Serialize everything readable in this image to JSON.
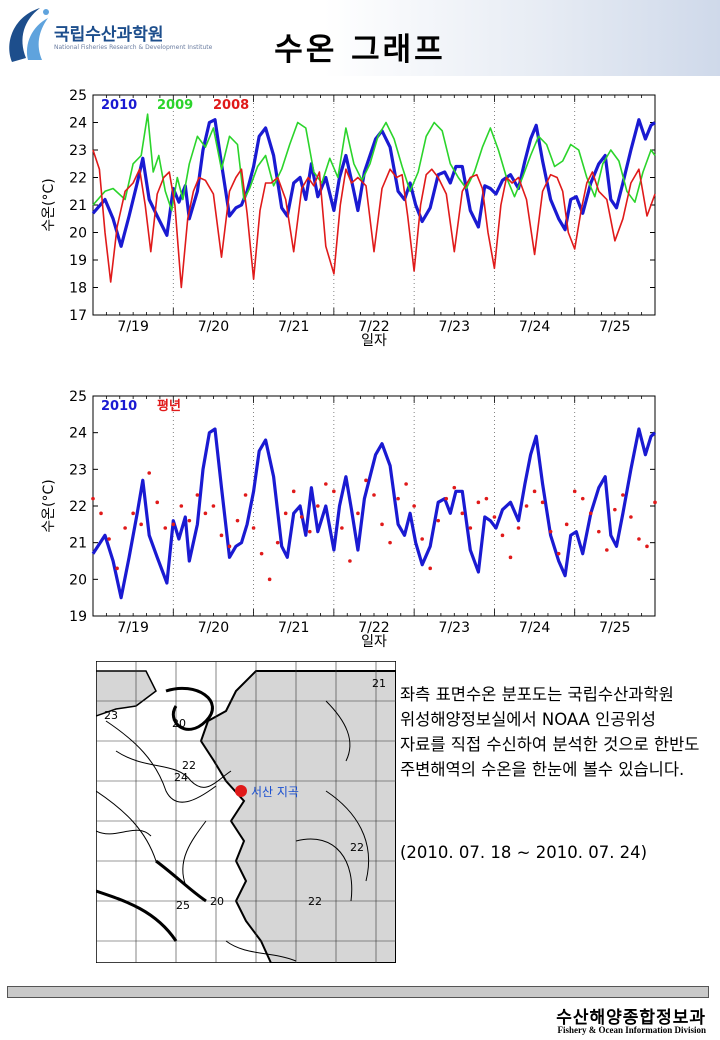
{
  "header": {
    "logo_text": "국립수산과학원",
    "logo_subtitle": "National Fisheries Research & Development Institute",
    "title": "수온 그래프"
  },
  "colors": {
    "blue": "#1a1ad2",
    "green": "#2bd42b",
    "red": "#e01a1a"
  },
  "chart_data": [
    {
      "type": "line",
      "xlabel": "일자",
      "ylabel": "수온(°C)",
      "ylim": [
        17,
        25
      ],
      "yticks": [
        17,
        18,
        19,
        20,
        21,
        22,
        23,
        24,
        25
      ],
      "categories": [
        "7/19",
        "7/20",
        "7/21",
        "7/22",
        "7/23",
        "7/24",
        "7/25"
      ],
      "xlim": [
        0,
        7
      ],
      "grid": "vertical dotted day separators",
      "legend": "top-left",
      "series": [
        {
          "name": "2010",
          "color": "#1a1ad2",
          "x": [
            0,
            0.15,
            0.25,
            0.35,
            0.45,
            0.55,
            0.62,
            0.7,
            0.8,
            0.92,
            1.0,
            1.07,
            1.15,
            1.2,
            1.3,
            1.37,
            1.45,
            1.52,
            1.6,
            1.7,
            1.78,
            1.85,
            1.92,
            2.0,
            2.07,
            2.15,
            2.25,
            2.35,
            2.42,
            2.5,
            2.58,
            2.65,
            2.72,
            2.8,
            2.9,
            3.0,
            3.07,
            3.15,
            3.22,
            3.3,
            3.38,
            3.45,
            3.52,
            3.6,
            3.7,
            3.8,
            3.88,
            3.95,
            4.02,
            4.1,
            4.2,
            4.3,
            4.38,
            4.45,
            4.52,
            4.6,
            4.7,
            4.8,
            4.88,
            4.95,
            5.02,
            5.1,
            5.2,
            5.3,
            5.38,
            5.45,
            5.52,
            5.6,
            5.7,
            5.8,
            5.88,
            5.95,
            6.02,
            6.1,
            6.2,
            6.3,
            6.38,
            6.45,
            6.52,
            6.6,
            6.7,
            6.8,
            6.88,
            6.95,
            7.0
          ],
          "values": [
            20.7,
            21.2,
            20.5,
            19.5,
            20.6,
            21.8,
            22.7,
            21.2,
            20.6,
            19.9,
            21.6,
            21.1,
            21.7,
            20.5,
            21.5,
            23.0,
            24.0,
            24.1,
            22.5,
            20.6,
            20.9,
            21.0,
            21.5,
            22.4,
            23.5,
            23.8,
            22.8,
            20.9,
            20.6,
            21.8,
            22.0,
            21.2,
            22.5,
            21.3,
            22.0,
            20.8,
            22.0,
            22.8,
            21.9,
            20.8,
            22.2,
            22.8,
            23.4,
            23.7,
            23.1,
            21.5,
            21.2,
            21.8,
            21.0,
            20.4,
            20.9,
            22.1,
            22.2,
            21.8,
            22.4,
            22.4,
            20.8,
            20.2,
            21.7,
            21.6,
            21.4,
            21.9,
            22.1,
            21.6,
            22.6,
            23.4,
            23.9,
            22.6,
            21.2,
            20.5,
            20.1,
            21.2,
            21.3,
            20.7,
            21.8,
            22.5,
            22.8,
            21.2,
            20.9,
            21.8,
            23.0,
            24.1,
            23.4,
            23.9,
            24.0
          ]
        },
        {
          "name": "2009",
          "color": "#2bd42b",
          "x": [
            0,
            0.15,
            0.25,
            0.4,
            0.5,
            0.6,
            0.68,
            0.75,
            0.82,
            0.9,
            0.98,
            1.05,
            1.12,
            1.2,
            1.3,
            1.4,
            1.5,
            1.6,
            1.7,
            1.8,
            1.88,
            1.95,
            2.05,
            2.15,
            2.25,
            2.35,
            2.45,
            2.55,
            2.65,
            2.75,
            2.85,
            2.95,
            3.05,
            3.15,
            3.25,
            3.35,
            3.45,
            3.55,
            3.65,
            3.75,
            3.85,
            3.95,
            4.05,
            4.15,
            4.25,
            4.35,
            4.45,
            4.55,
            4.65,
            4.75,
            4.85,
            4.95,
            5.05,
            5.15,
            5.25,
            5.35,
            5.45,
            5.55,
            5.65,
            5.75,
            5.85,
            5.95,
            6.05,
            6.15,
            6.25,
            6.35,
            6.45,
            6.55,
            6.65,
            6.75,
            6.85,
            6.95,
            7.0
          ],
          "values": [
            21.0,
            21.5,
            21.6,
            21.2,
            22.5,
            22.8,
            24.3,
            22.2,
            22.8,
            21.5,
            20.8,
            22.0,
            21.2,
            22.5,
            23.5,
            23.1,
            23.8,
            22.3,
            23.5,
            23.2,
            21.2,
            21.6,
            22.4,
            22.8,
            21.7,
            22.3,
            23.2,
            24.0,
            23.8,
            22.2,
            21.8,
            22.7,
            22.0,
            23.8,
            22.5,
            21.9,
            22.5,
            23.5,
            24.0,
            23.4,
            22.4,
            21.5,
            22.2,
            23.5,
            24.0,
            23.7,
            22.5,
            22.0,
            21.6,
            22.2,
            23.1,
            23.8,
            23.0,
            22.0,
            21.3,
            22.0,
            22.8,
            23.5,
            23.2,
            22.4,
            22.6,
            23.2,
            23.0,
            22.0,
            21.3,
            22.5,
            23.0,
            22.6,
            21.5,
            21.1,
            22.2,
            23.0,
            22.8
          ]
        },
        {
          "name": "2008",
          "color": "#e01a1a",
          "x": [
            0,
            0.08,
            0.15,
            0.22,
            0.3,
            0.4,
            0.5,
            0.58,
            0.65,
            0.72,
            0.8,
            0.88,
            0.95,
            1.02,
            1.1,
            1.18,
            1.25,
            1.32,
            1.4,
            1.5,
            1.6,
            1.7,
            1.78,
            1.85,
            1.92,
            2.0,
            2.08,
            2.15,
            2.22,
            2.3,
            2.4,
            2.5,
            2.6,
            2.68,
            2.75,
            2.82,
            2.9,
            3.0,
            3.08,
            3.15,
            3.22,
            3.3,
            3.4,
            3.5,
            3.6,
            3.7,
            3.78,
            3.85,
            3.92,
            4.0,
            4.08,
            4.15,
            4.22,
            4.3,
            4.4,
            4.5,
            4.6,
            4.7,
            4.78,
            4.85,
            4.92,
            5.0,
            5.08,
            5.15,
            5.22,
            5.3,
            5.4,
            5.5,
            5.6,
            5.7,
            5.78,
            5.85,
            5.92,
            6.0,
            6.08,
            6.15,
            6.22,
            6.3,
            6.4,
            6.5,
            6.6,
            6.7,
            6.8,
            6.9,
            7.0
          ],
          "values": [
            23.0,
            22.3,
            20.0,
            18.2,
            20.2,
            21.5,
            21.8,
            22.3,
            21.0,
            19.3,
            21.4,
            22.0,
            22.2,
            21.0,
            18.0,
            20.5,
            21.5,
            22.0,
            21.9,
            21.4,
            19.1,
            21.5,
            22.0,
            22.3,
            20.7,
            18.3,
            20.8,
            21.8,
            21.8,
            22.0,
            21.2,
            19.3,
            21.6,
            22.0,
            21.7,
            22.2,
            19.5,
            18.5,
            21.0,
            22.3,
            21.8,
            22.0,
            21.7,
            19.3,
            21.6,
            22.3,
            22.0,
            22.1,
            20.6,
            18.6,
            21.0,
            22.1,
            22.3,
            22.0,
            21.4,
            19.3,
            21.5,
            22.0,
            22.1,
            21.6,
            20.0,
            18.7,
            21.0,
            22.0,
            21.8,
            22.0,
            21.2,
            19.2,
            21.5,
            22.1,
            22.0,
            21.5,
            20.0,
            19.4,
            20.8,
            21.8,
            22.2,
            21.5,
            21.2,
            19.7,
            20.5,
            21.8,
            22.3,
            20.6,
            21.4
          ]
        }
      ]
    },
    {
      "type": "line",
      "xlabel": "일자",
      "ylabel": "수온(°C)",
      "ylim": [
        19,
        25
      ],
      "yticks": [
        19,
        20,
        21,
        22,
        23,
        24,
        25
      ],
      "categories": [
        "7/19",
        "7/20",
        "7/21",
        "7/22",
        "7/23",
        "7/24",
        "7/25"
      ],
      "xlim": [
        0,
        7
      ],
      "grid": "vertical dotted day separators",
      "legend": "top-left",
      "series": [
        {
          "name": "2010",
          "color": "#1a1ad2",
          "style": "line",
          "x": [
            0,
            0.15,
            0.25,
            0.35,
            0.45,
            0.55,
            0.62,
            0.7,
            0.8,
            0.92,
            1.0,
            1.07,
            1.15,
            1.2,
            1.3,
            1.37,
            1.45,
            1.52,
            1.6,
            1.7,
            1.78,
            1.85,
            1.92,
            2.0,
            2.07,
            2.15,
            2.25,
            2.35,
            2.42,
            2.5,
            2.58,
            2.65,
            2.72,
            2.8,
            2.9,
            3.0,
            3.07,
            3.15,
            3.22,
            3.3,
            3.38,
            3.45,
            3.52,
            3.6,
            3.7,
            3.8,
            3.88,
            3.95,
            4.02,
            4.1,
            4.2,
            4.3,
            4.38,
            4.45,
            4.52,
            4.6,
            4.7,
            4.8,
            4.88,
            4.95,
            5.02,
            5.1,
            5.2,
            5.3,
            5.38,
            5.45,
            5.52,
            5.6,
            5.7,
            5.8,
            5.88,
            5.95,
            6.02,
            6.1,
            6.2,
            6.3,
            6.38,
            6.45,
            6.52,
            6.6,
            6.7,
            6.8,
            6.88,
            6.95,
            7.0
          ],
          "values": [
            20.7,
            21.2,
            20.5,
            19.5,
            20.6,
            21.8,
            22.7,
            21.2,
            20.6,
            19.9,
            21.6,
            21.1,
            21.7,
            20.5,
            21.5,
            23.0,
            24.0,
            24.1,
            22.5,
            20.6,
            20.9,
            21.0,
            21.5,
            22.4,
            23.5,
            23.8,
            22.8,
            20.9,
            20.6,
            21.8,
            22.0,
            21.2,
            22.5,
            21.3,
            22.0,
            20.8,
            22.0,
            22.8,
            21.9,
            20.8,
            22.2,
            22.8,
            23.4,
            23.7,
            23.1,
            21.5,
            21.2,
            21.8,
            21.0,
            20.4,
            20.9,
            22.1,
            22.2,
            21.8,
            22.4,
            22.4,
            20.8,
            20.2,
            21.7,
            21.6,
            21.4,
            21.9,
            22.1,
            21.6,
            22.6,
            23.4,
            23.9,
            22.6,
            21.2,
            20.5,
            20.1,
            21.2,
            21.3,
            20.7,
            21.8,
            22.5,
            22.8,
            21.2,
            20.9,
            21.8,
            23.0,
            24.1,
            23.4,
            23.9,
            24.0
          ]
        },
        {
          "name": "평년",
          "color": "#e01a1a",
          "style": "dots",
          "x": [
            0.0,
            0.1,
            0.2,
            0.3,
            0.4,
            0.5,
            0.6,
            0.7,
            0.8,
            0.9,
            1.0,
            1.1,
            1.2,
            1.3,
            1.4,
            1.5,
            1.6,
            1.7,
            1.8,
            1.9,
            2.0,
            2.1,
            2.2,
            2.3,
            2.4,
            2.5,
            2.6,
            2.7,
            2.8,
            2.9,
            3.0,
            3.1,
            3.2,
            3.3,
            3.4,
            3.5,
            3.6,
            3.7,
            3.8,
            3.9,
            4.0,
            4.1,
            4.2,
            4.3,
            4.4,
            4.5,
            4.6,
            4.7,
            4.8,
            4.9,
            5.0,
            5.1,
            5.2,
            5.3,
            5.4,
            5.5,
            5.6,
            5.7,
            5.8,
            5.9,
            6.0,
            6.1,
            6.2,
            6.3,
            6.4,
            6.5,
            6.6,
            6.7,
            6.8,
            6.9,
            7.0
          ],
          "values": [
            22.2,
            21.8,
            21.1,
            20.3,
            21.4,
            21.8,
            21.5,
            22.9,
            22.1,
            21.4,
            21.5,
            22.0,
            21.6,
            22.3,
            21.8,
            22.0,
            21.2,
            20.9,
            21.6,
            22.3,
            21.4,
            20.7,
            20.0,
            21.0,
            21.8,
            22.4,
            21.7,
            21.3,
            22.0,
            22.6,
            22.4,
            21.4,
            20.5,
            21.8,
            22.7,
            22.3,
            21.5,
            21.0,
            22.2,
            22.6,
            22.0,
            21.1,
            20.3,
            21.6,
            22.2,
            22.5,
            21.8,
            21.4,
            22.1,
            22.2,
            21.7,
            21.2,
            20.6,
            21.4,
            22.0,
            22.4,
            22.1,
            21.3,
            20.7,
            21.5,
            22.4,
            22.2,
            21.8,
            21.3,
            20.8,
            21.9,
            22.3,
            21.7,
            21.1,
            20.9,
            22.1
          ]
        }
      ]
    }
  ],
  "map": {
    "location_label": "서산 지곡",
    "contour_labels": [
      "21",
      "23",
      "20",
      "22",
      "24",
      "22",
      "25",
      "20",
      "22"
    ]
  },
  "description": "좌측 표면수온 분포도는 국립수산과학원 위성해양정보실에서 NOAA 인공위성 자료를 직접 수신하여 분석한 것으로 한반도 주변해역의 수온을 한눈에 볼수 있습니다.",
  "period": "(2010. 07. 18 ~ 2010. 07. 24)",
  "footer": {
    "ko": "수산해양종합정보과",
    "en": "Fishery & Ocean Information Division"
  }
}
